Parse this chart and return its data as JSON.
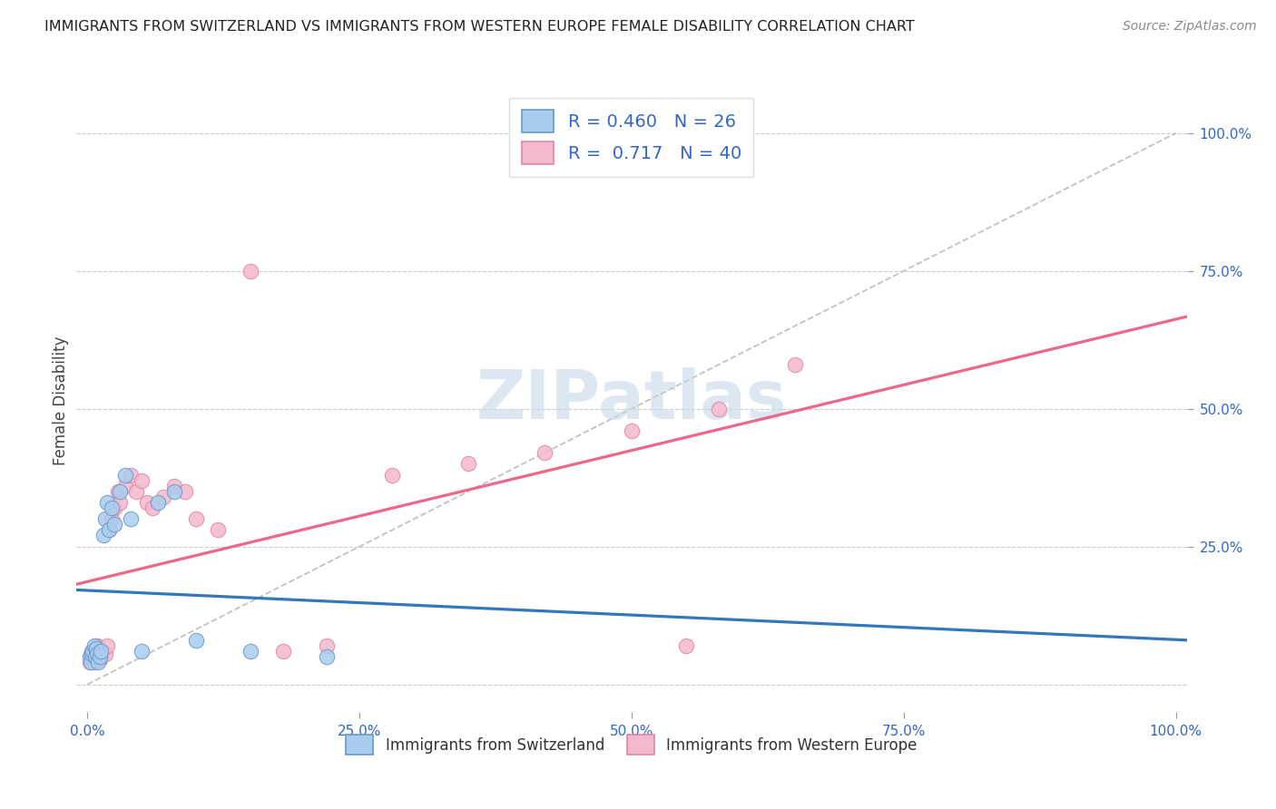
{
  "title": "IMMIGRANTS FROM SWITZERLAND VS IMMIGRANTS FROM WESTERN EUROPE FEMALE DISABILITY CORRELATION CHART",
  "source": "Source: ZipAtlas.com",
  "ylabel": "Female Disability",
  "series1_name": "Immigrants from Switzerland",
  "series1_color": "#aaccee",
  "series1_edge": "#6699cc",
  "series1_R": 0.46,
  "series1_N": 26,
  "series2_name": "Immigrants from Western Europe",
  "series2_color": "#f4b8cc",
  "series2_edge": "#dd88aa",
  "series2_R": 0.717,
  "series2_N": 40,
  "blue_line_color": "#3377bb",
  "pink_line_color": "#ee6688",
  "ref_line_color": "#bbbbbb",
  "watermark_color": "#c5d8ea",
  "background_color": "#ffffff",
  "grid_color": "#cccccc",
  "tick_color": "#3366cc",
  "series1_x": [
    0.2,
    0.3,
    0.4,
    0.5,
    0.6,
    0.7,
    0.8,
    0.9,
    1.0,
    1.1,
    1.2,
    1.5,
    1.6,
    1.8,
    2.0,
    2.2,
    2.5,
    3.0,
    3.5,
    4.0,
    5.0,
    6.5,
    8.0,
    10.0,
    15.0,
    22.0
  ],
  "series1_y": [
    5.0,
    4.0,
    5.5,
    6.0,
    7.0,
    5.0,
    6.5,
    5.5,
    4.0,
    5.0,
    6.0,
    27.0,
    30.0,
    33.0,
    28.0,
    32.0,
    29.0,
    35.0,
    38.0,
    30.0,
    6.0,
    33.0,
    35.0,
    8.0,
    6.0,
    5.0
  ],
  "series2_x": [
    0.2,
    0.3,
    0.4,
    0.5,
    0.6,
    0.7,
    0.8,
    0.9,
    1.0,
    1.1,
    1.2,
    1.4,
    1.6,
    1.8,
    2.0,
    2.2,
    2.5,
    2.8,
    3.0,
    3.5,
    4.0,
    4.5,
    5.0,
    5.5,
    6.0,
    7.0,
    8.0,
    9.0,
    10.0,
    12.0,
    15.0,
    18.0,
    22.0,
    28.0,
    35.0,
    42.0,
    50.0,
    58.0,
    65.0,
    55.0
  ],
  "series2_y": [
    4.0,
    5.0,
    6.0,
    5.5,
    4.0,
    6.0,
    5.0,
    7.0,
    6.0,
    4.5,
    5.0,
    6.0,
    5.5,
    7.0,
    28.0,
    30.0,
    32.0,
    35.0,
    33.0,
    36.0,
    38.0,
    35.0,
    37.0,
    33.0,
    32.0,
    34.0,
    36.0,
    35.0,
    30.0,
    28.0,
    75.0,
    6.0,
    7.0,
    38.0,
    40.0,
    42.0,
    46.0,
    50.0,
    58.0,
    7.0
  ]
}
